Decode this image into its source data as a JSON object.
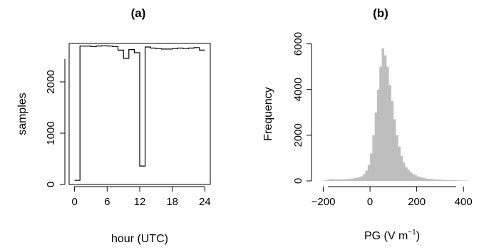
{
  "chart_data": [
    {
      "type": "line",
      "title": "(a)",
      "xlabel": "hour (UTC)",
      "ylabel": "samples",
      "xlim": [
        -1,
        25
      ],
      "ylim": [
        0,
        2750
      ],
      "x_ticks": [
        "0",
        "6",
        "12",
        "18",
        "24"
      ],
      "y_ticks": [
        "0",
        "1000",
        "2000"
      ],
      "step": true,
      "x": [
        0.5,
        1.5,
        2.5,
        3.5,
        4.5,
        5.5,
        6.5,
        7.5,
        8.5,
        9.5,
        10.5,
        11.5,
        12.5,
        13.5,
        14.5,
        15.5,
        16.5,
        17.5,
        18.5,
        19.5,
        20.5,
        21.5,
        22.5,
        23.5
      ],
      "values": [
        80,
        2700,
        2700,
        2690,
        2700,
        2705,
        2700,
        2690,
        2620,
        2460,
        2630,
        2570,
        360,
        2680,
        2660,
        2650,
        2640,
        2640,
        2650,
        2660,
        2650,
        2660,
        2670,
        2620
      ]
    },
    {
      "type": "bar",
      "title": "(b)",
      "xlabel": "PG (V m",
      "xlabel_sup": "−1",
      "xlabel_end": ")",
      "ylabel": "Frequency",
      "xlim": [
        -220,
        430
      ],
      "ylim": [
        0,
        6300
      ],
      "x_ticks": [
        {
          "value": -200,
          "label": "−200"
        },
        {
          "value": 0,
          "label": "0"
        },
        {
          "value": 200,
          "label": "200"
        },
        {
          "value": 400,
          "label": "400"
        }
      ],
      "y_ticks": [
        "0",
        "2000",
        "4000",
        "6000"
      ],
      "bin_width": 10,
      "bin_start": -200,
      "values": [
        20,
        30,
        60,
        80,
        70,
        65,
        60,
        60,
        60,
        70,
        80,
        90,
        100,
        120,
        140,
        170,
        200,
        300,
        450,
        700,
        1200,
        2000,
        3000,
        4000,
        5000,
        5800,
        5500,
        5000,
        4200,
        3500,
        2700,
        2000,
        1500,
        1100,
        800,
        600,
        480,
        380,
        300,
        250,
        200,
        170,
        150,
        120,
        100,
        90,
        80,
        70,
        60,
        55,
        50,
        45,
        40,
        35,
        30,
        28,
        25,
        22,
        20,
        18,
        15,
        12
      ]
    }
  ]
}
